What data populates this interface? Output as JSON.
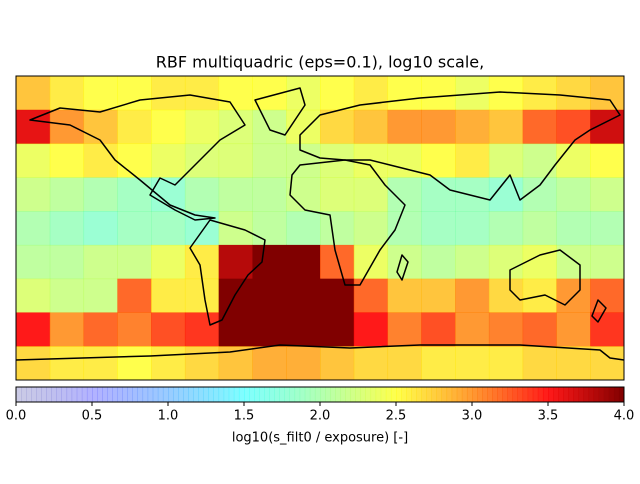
{
  "chart_data": {
    "type": "heatmap",
    "title": "RBF multiquadric (eps=0.1), log10 scale,",
    "colorbar_label": "log10(s_filt0 / exposure) [-]",
    "colormap": "jet",
    "clim": [
      0,
      4
    ],
    "cticks": [
      {
        "value": 0,
        "label": "0.0"
      },
      0.5,
      {
        "value": 1,
        "label": "1.0"
      },
      1.5,
      {
        "value": 2,
        "label": "2.0"
      },
      2.5,
      {
        "value": 3,
        "label": "3.0"
      },
      3.5,
      {
        "value": 4,
        "label": "4.0"
      }
    ],
    "z": [
      [
        2.8,
        2.6,
        2.5,
        2.5,
        2.6,
        2.6,
        2.5,
        2.5,
        2.4,
        2.5,
        2.6,
        2.5,
        2.5,
        2.4,
        2.5,
        2.6,
        2.7,
        2.8
      ],
      [
        3.6,
        3.0,
        2.8,
        2.6,
        2.5,
        2.4,
        2.3,
        2.2,
        2.4,
        2.7,
        2.8,
        3.0,
        3.0,
        2.9,
        2.8,
        3.2,
        3.3,
        3.7
      ],
      [
        2.4,
        2.5,
        2.6,
        2.5,
        2.4,
        2.3,
        2.3,
        2.2,
        2.2,
        2.3,
        2.4,
        2.4,
        2.5,
        2.6,
        2.3,
        2.2,
        2.4,
        2.5
      ],
      [
        2.2,
        2.1,
        2.0,
        1.9,
        1.8,
        2.0,
        2.1,
        2.1,
        2.2,
        2.3,
        2.3,
        2.0,
        1.9,
        1.9,
        1.8,
        2.0,
        2.1,
        2.2
      ],
      [
        2.0,
        1.9,
        1.8,
        1.9,
        1.9,
        1.8,
        2.2,
        2.1,
        2.0,
        2.1,
        2.2,
        2.0,
        1.9,
        1.9,
        2.0,
        2.1,
        2.0,
        2.0
      ],
      [
        2.1,
        2.1,
        2.2,
        2.2,
        2.4,
        2.6,
        3.8,
        4.0,
        4.0,
        3.2,
        2.4,
        2.2,
        2.1,
        2.2,
        2.3,
        2.4,
        2.2,
        2.2
      ],
      [
        2.3,
        2.2,
        2.2,
        3.2,
        2.6,
        2.6,
        4.0,
        4.0,
        4.0,
        4.0,
        3.2,
        2.8,
        2.8,
        3.0,
        2.7,
        2.6,
        3.0,
        3.2
      ],
      [
        3.5,
        3.0,
        3.2,
        3.1,
        3.3,
        3.4,
        4.0,
        4.0,
        4.0,
        4.0,
        3.5,
        3.1,
        3.3,
        3.0,
        3.1,
        3.2,
        3.0,
        3.4
      ],
      [
        2.7,
        2.6,
        2.6,
        2.5,
        2.6,
        2.7,
        2.8,
        2.9,
        2.9,
        2.8,
        2.7,
        2.7,
        2.6,
        2.6,
        2.6,
        2.7,
        2.7,
        2.7
      ]
    ]
  }
}
